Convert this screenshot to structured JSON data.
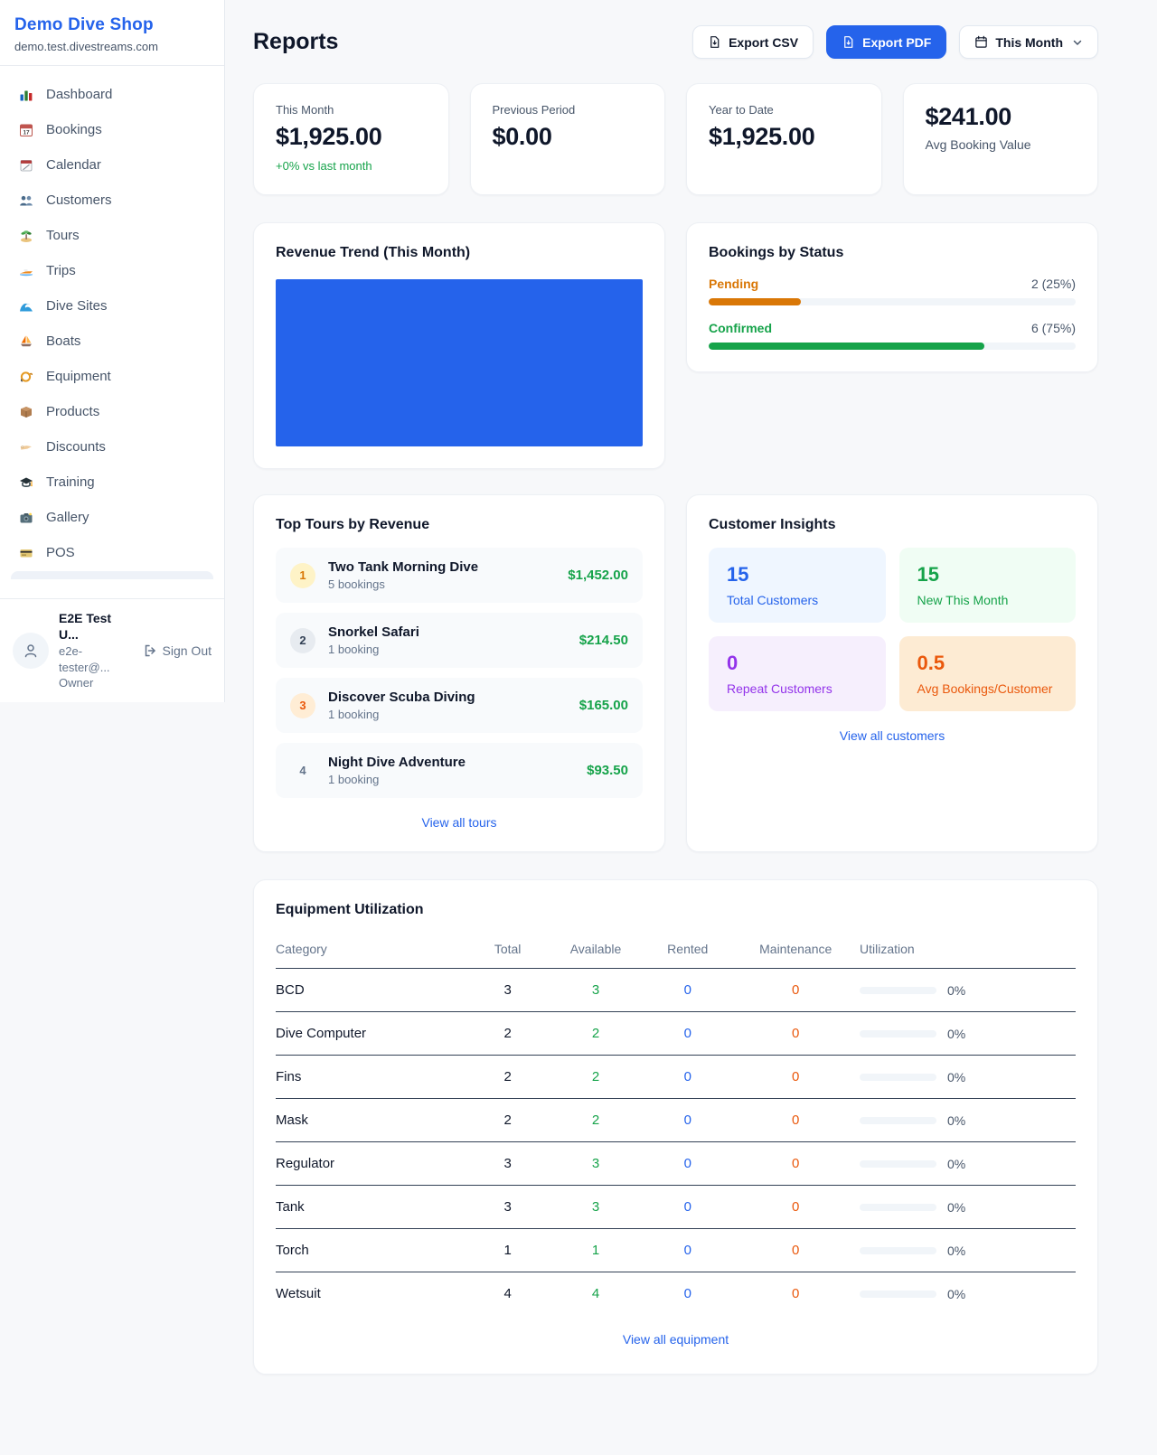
{
  "colors": {
    "accent": "#2563eb",
    "green": "#16a34a",
    "pending_orange": "#d97706",
    "maintenance_orange": "#ea580c",
    "purple": "#9333ea"
  },
  "sidebar": {
    "shop_name": "Demo Dive Shop",
    "shop_domain": "demo.test.divestreams.com",
    "items": [
      {
        "icon": "dashboard-icon",
        "label": "Dashboard"
      },
      {
        "icon": "bookings-icon",
        "label": "Bookings"
      },
      {
        "icon": "calendar-icon",
        "label": "Calendar"
      },
      {
        "icon": "customers-icon",
        "label": "Customers"
      },
      {
        "icon": "tours-icon",
        "label": "Tours"
      },
      {
        "icon": "trips-icon",
        "label": "Trips"
      },
      {
        "icon": "dive-sites-icon",
        "label": "Dive Sites"
      },
      {
        "icon": "boats-icon",
        "label": "Boats"
      },
      {
        "icon": "equipment-icon",
        "label": "Equipment"
      },
      {
        "icon": "products-icon",
        "label": "Products"
      },
      {
        "icon": "discounts-icon",
        "label": "Discounts"
      },
      {
        "icon": "training-icon",
        "label": "Training"
      },
      {
        "icon": "gallery-icon",
        "label": "Gallery"
      },
      {
        "icon": "pos-icon",
        "label": "POS"
      }
    ],
    "user": {
      "name": "E2E Test U...",
      "email": "e2e-tester@...",
      "role": "Owner",
      "sign_out_label": "Sign Out"
    }
  },
  "header": {
    "title": "Reports",
    "export_csv_label": "Export CSV",
    "export_pdf_label": "Export PDF",
    "period_label": "This Month"
  },
  "stats": [
    {
      "label": "This Month",
      "value": "$1,925.00",
      "delta": "+0% vs last month"
    },
    {
      "label": "Previous Period",
      "value": "$0.00"
    },
    {
      "label": "Year to Date",
      "value": "$1,925.00"
    },
    {
      "label": "Avg Booking Value",
      "value": "$241.00"
    }
  ],
  "revenue_trend": {
    "title": "Revenue Trend (This Month)",
    "type": "bar",
    "bar_fill_pct": 100,
    "bar_color": "#2563eb"
  },
  "bookings_by_status": {
    "title": "Bookings by Status",
    "rows": [
      {
        "label": "Pending",
        "value": "2 (25%)",
        "pct": 25,
        "color": "#d97706"
      },
      {
        "label": "Confirmed",
        "value": "6 (75%)",
        "pct": 75,
        "color": "#16a34a"
      }
    ]
  },
  "top_tours": {
    "title": "Top Tours by Revenue",
    "items": [
      {
        "rank": "1",
        "name": "Two Tank Morning Dive",
        "bookings": "5 bookings",
        "amount": "$1,452.00"
      },
      {
        "rank": "2",
        "name": "Snorkel Safari",
        "bookings": "1 booking",
        "amount": "$214.50"
      },
      {
        "rank": "3",
        "name": "Discover Scuba Diving",
        "bookings": "1 booking",
        "amount": "$165.00"
      },
      {
        "rank": "4",
        "name": "Night Dive Adventure",
        "bookings": "1 booking",
        "amount": "$93.50"
      }
    ],
    "view_all_label": "View all tours"
  },
  "customer_insights": {
    "title": "Customer Insights",
    "boxes": [
      {
        "value": "15",
        "label": "Total Customers"
      },
      {
        "value": "15",
        "label": "New This Month"
      },
      {
        "value": "0",
        "label": "Repeat Customers"
      },
      {
        "value": "0.5",
        "label": "Avg Bookings/Customer"
      }
    ],
    "view_all_label": "View all customers"
  },
  "equipment": {
    "title": "Equipment Utilization",
    "columns": [
      "Category",
      "Total",
      "Available",
      "Rented",
      "Maintenance",
      "Utilization"
    ],
    "rows": [
      {
        "category": "BCD",
        "total": "3",
        "available": "3",
        "rented": "0",
        "maintenance": "0",
        "utilization_pct": 0,
        "utilization": "0%"
      },
      {
        "category": "Dive Computer",
        "total": "2",
        "available": "2",
        "rented": "0",
        "maintenance": "0",
        "utilization_pct": 0,
        "utilization": "0%"
      },
      {
        "category": "Fins",
        "total": "2",
        "available": "2",
        "rented": "0",
        "maintenance": "0",
        "utilization_pct": 0,
        "utilization": "0%"
      },
      {
        "category": "Mask",
        "total": "2",
        "available": "2",
        "rented": "0",
        "maintenance": "0",
        "utilization_pct": 0,
        "utilization": "0%"
      },
      {
        "category": "Regulator",
        "total": "3",
        "available": "3",
        "rented": "0",
        "maintenance": "0",
        "utilization_pct": 0,
        "utilization": "0%"
      },
      {
        "category": "Tank",
        "total": "3",
        "available": "3",
        "rented": "0",
        "maintenance": "0",
        "utilization_pct": 0,
        "utilization": "0%"
      },
      {
        "category": "Torch",
        "total": "1",
        "available": "1",
        "rented": "0",
        "maintenance": "0",
        "utilization_pct": 0,
        "utilization": "0%"
      },
      {
        "category": "Wetsuit",
        "total": "4",
        "available": "4",
        "rented": "0",
        "maintenance": "0",
        "utilization_pct": 0,
        "utilization": "0%"
      }
    ],
    "view_all_label": "View all equipment"
  }
}
